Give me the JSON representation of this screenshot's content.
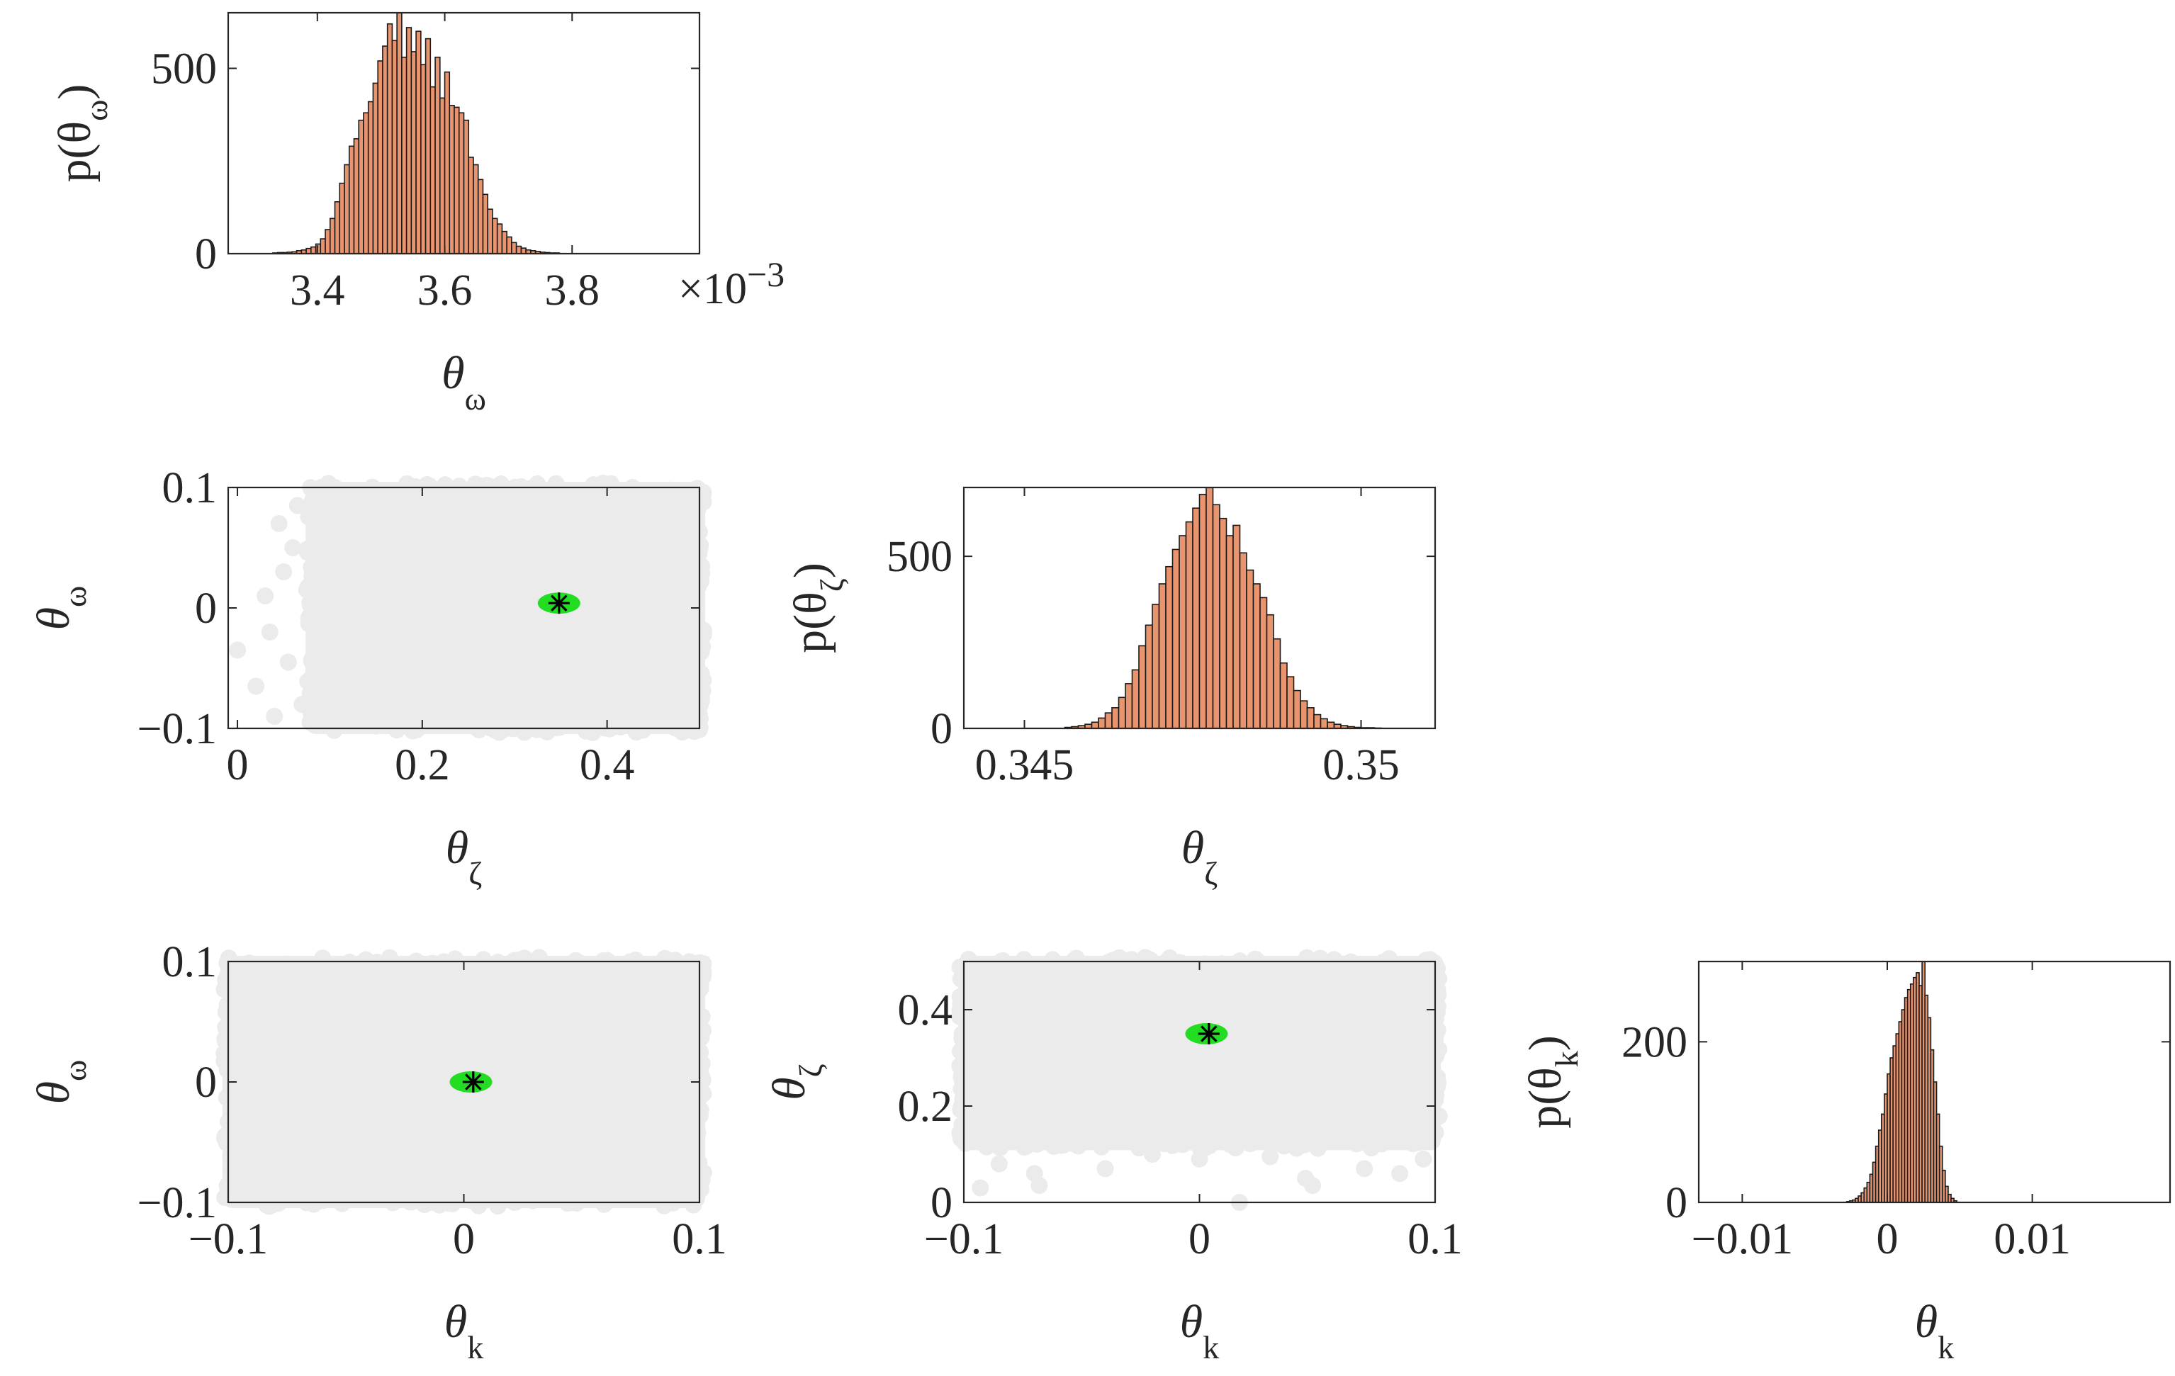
{
  "colors": {
    "hist_fill": "#e8956f",
    "hist_edge": "#1a1a1a",
    "scatter_gray": "#ebebeb",
    "posterior_green": "#22dd22",
    "axis": "#262626"
  },
  "chart_data": [
    {
      "id": "hist-omega",
      "type": "bar",
      "xlim": [
        3.26,
        4.0
      ],
      "ylim": [
        0,
        650
      ],
      "xticks": [
        3.4,
        3.6,
        3.8
      ],
      "xtick_labels": [
        "3.4",
        "3.6",
        "3.8"
      ],
      "yticks": [
        0,
        500
      ],
      "ytick_labels": [
        "0",
        "500"
      ],
      "exponent_label": "×10",
      "exponent_power": "−3",
      "xlabel_symbol": "θ",
      "xlabel_sub": "ω",
      "ylabel_prefix": "p(θ",
      "ylabel_sub": "ω",
      "ylabel_suffix": ")",
      "bin_start": 3.33,
      "bin_width": 0.0075,
      "values": [
        2,
        3,
        3,
        4,
        5,
        8,
        10,
        14,
        18,
        26,
        40,
        65,
        95,
        140,
        190,
        240,
        290,
        310,
        360,
        380,
        410,
        460,
        520,
        560,
        620,
        575,
        650,
        530,
        610,
        545,
        600,
        510,
        580,
        450,
        530,
        420,
        490,
        400,
        395,
        380,
        360,
        260,
        240,
        200,
        160,
        120,
        95,
        80,
        60,
        45,
        30,
        20,
        15,
        10,
        8,
        6,
        4,
        3,
        2,
        2
      ],
      "grid": false
    },
    {
      "id": "hist-zeta",
      "type": "bar",
      "xlim": [
        0.3441,
        0.3511
      ],
      "ylim": [
        0,
        700
      ],
      "xticks": [
        0.345,
        0.35
      ],
      "xtick_labels": [
        "0.345",
        "0.35"
      ],
      "yticks": [
        0,
        500
      ],
      "ytick_labels": [
        "0",
        "500"
      ],
      "xlabel_symbol": "θ",
      "xlabel_sub": "ζ",
      "ylabel_prefix": "p(θ",
      "ylabel_sub": "ζ",
      "ylabel_suffix": ")",
      "bin_start": 0.3456,
      "bin_width": 0.0001,
      "values": [
        3,
        5,
        8,
        12,
        18,
        30,
        45,
        60,
        90,
        130,
        170,
        240,
        300,
        360,
        420,
        470,
        520,
        560,
        600,
        640,
        680,
        700,
        650,
        610,
        560,
        590,
        510,
        460,
        420,
        380,
        330,
        260,
        190,
        150,
        110,
        80,
        60,
        40,
        28,
        18,
        12,
        8,
        5,
        3,
        2,
        2,
        1
      ],
      "grid": false
    },
    {
      "id": "hist-k",
      "type": "bar",
      "xlim": [
        -0.013,
        0.0195
      ],
      "ylim": [
        0,
        300
      ],
      "xticks": [
        -0.01,
        0,
        0.01
      ],
      "xtick_labels": [
        "−0.01",
        "0",
        "0.01"
      ],
      "yticks": [
        0,
        200
      ],
      "ytick_labels": [
        "0",
        "200"
      ],
      "xlabel_symbol": "θ",
      "xlabel_sub": "k",
      "ylabel_prefix": "p(θ",
      "ylabel_sub": "k",
      "ylabel_suffix": ")",
      "bin_start": -0.0028,
      "bin_width": 0.0002,
      "values": [
        1,
        2,
        3,
        5,
        8,
        12,
        18,
        25,
        35,
        50,
        70,
        90,
        110,
        135,
        160,
        180,
        195,
        210,
        225,
        240,
        255,
        265,
        272,
        280,
        286,
        270,
        300,
        258,
        230,
        190,
        150,
        110,
        70,
        40,
        20,
        10,
        5,
        2
      ],
      "grid": false
    },
    {
      "id": "scatter-omega-zeta",
      "type": "scatter",
      "xlim": [
        -0.01,
        0.5
      ],
      "ylim": [
        -0.1,
        0.1
      ],
      "xticks": [
        0,
        0.2,
        0.4
      ],
      "xtick_labels": [
        "0",
        "0.2",
        "0.4"
      ],
      "yticks": [
        -0.1,
        0,
        0.1
      ],
      "ytick_labels": [
        "−0.1",
        "0",
        "0.1"
      ],
      "xlabel_symbol": "θ",
      "xlabel_sub": "ζ",
      "ylabel_symbol": "θ",
      "ylabel_sub": "ω",
      "prior_region": {
        "x": [
          0.08,
          0.5
        ],
        "y": [
          -0.1,
          0.1
        ]
      },
      "prior_stray": [
        [
          0.0,
          -0.035
        ],
        [
          0.02,
          -0.065
        ],
        [
          0.035,
          -0.02
        ],
        [
          0.05,
          0.03
        ],
        [
          0.06,
          0.05
        ],
        [
          0.07,
          -0.08
        ],
        [
          0.045,
          0.07
        ],
        [
          0.055,
          -0.045
        ],
        [
          0.03,
          0.01
        ],
        [
          0.065,
          0.085
        ],
        [
          0.075,
          0.015
        ],
        [
          0.04,
          -0.09
        ]
      ],
      "posterior_center": [
        0.348,
        0.004
      ],
      "map_estimate": [
        0.348,
        0.004
      ],
      "grid": false
    },
    {
      "id": "scatter-omega-k",
      "type": "scatter",
      "xlim": [
        -0.1,
        0.1
      ],
      "ylim": [
        -0.1,
        0.1
      ],
      "xticks": [
        -0.1,
        0,
        0.1
      ],
      "xtick_labels": [
        "−0.1",
        "0",
        "0.1"
      ],
      "yticks": [
        -0.1,
        0,
        0.1
      ],
      "ytick_labels": [
        "−0.1",
        "0",
        "0.1"
      ],
      "xlabel_symbol": "θ",
      "xlabel_sub": "k",
      "ylabel_symbol": "θ",
      "ylabel_sub": "ω",
      "prior_region": {
        "x": [
          -0.1,
          0.1
        ],
        "y": [
          -0.1,
          0.1
        ]
      },
      "prior_stray": [],
      "posterior_center": [
        0.003,
        0.0
      ],
      "map_estimate": [
        0.004,
        0.0
      ],
      "grid": false
    },
    {
      "id": "scatter-zeta-k",
      "type": "scatter",
      "xlim": [
        -0.1,
        0.1
      ],
      "ylim": [
        0,
        0.5
      ],
      "xticks": [
        -0.1,
        0,
        0.1
      ],
      "xtick_labels": [
        "−0.1",
        "0",
        "0.1"
      ],
      "yticks": [
        0,
        0.2,
        0.4
      ],
      "ytick_labels": [
        "0",
        "0.2",
        "0.4"
      ],
      "xlabel_symbol": "θ",
      "xlabel_sub": "k",
      "ylabel_symbol": "θ",
      "ylabel_sub": "ζ",
      "prior_region": {
        "x": [
          -0.1,
          0.1
        ],
        "y": [
          0.12,
          0.5
        ]
      },
      "prior_stray": [
        [
          -0.093,
          0.03
        ],
        [
          -0.07,
          0.06
        ],
        [
          -0.068,
          0.035
        ],
        [
          -0.04,
          0.07
        ],
        [
          0.0,
          0.09
        ],
        [
          0.017,
          0.0
        ],
        [
          0.045,
          0.05
        ],
        [
          0.048,
          0.035
        ],
        [
          0.07,
          0.07
        ],
        [
          0.085,
          0.06
        ],
        [
          -0.02,
          0.1
        ],
        [
          0.03,
          0.095
        ],
        [
          -0.085,
          0.08
        ],
        [
          0.095,
          0.09
        ]
      ],
      "posterior_center": [
        0.003,
        0.35
      ],
      "map_estimate": [
        0.004,
        0.35
      ],
      "grid": false
    }
  ]
}
